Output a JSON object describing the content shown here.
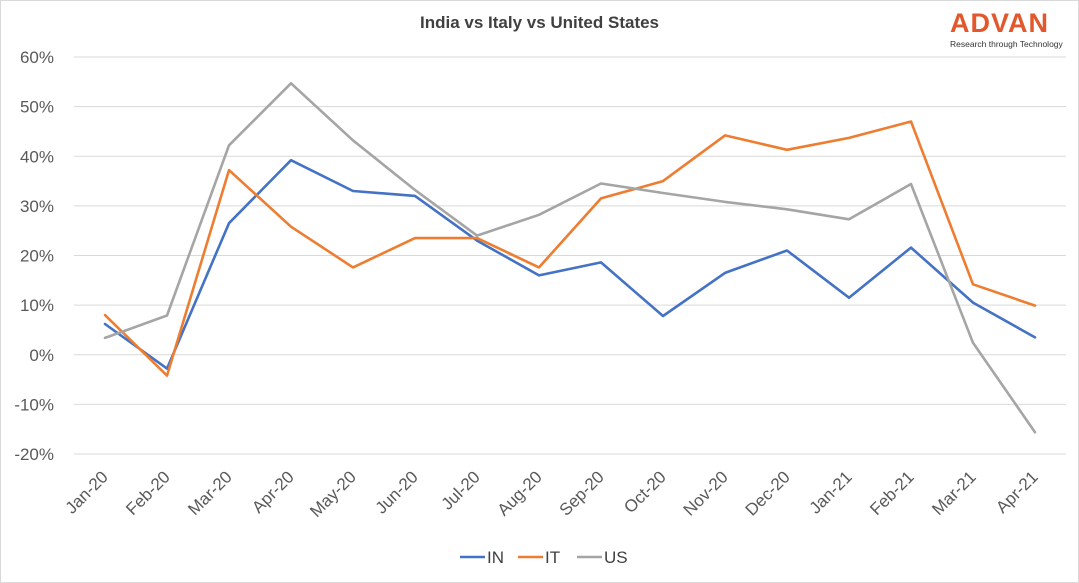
{
  "chart_data": {
    "type": "line",
    "title": "India vs Italy vs United States",
    "categories": [
      "Jan-20",
      "Feb-20",
      "Mar-20",
      "Apr-20",
      "May-20",
      "Jun-20",
      "Jul-20",
      "Aug-20",
      "Sep-20",
      "Oct-20",
      "Nov-20",
      "Dec-20",
      "Jan-21",
      "Feb-21",
      "Mar-21",
      "Apr-21"
    ],
    "series": [
      {
        "name": "IN",
        "color": "#4472c4",
        "values": [
          6.2,
          -2.8,
          26.5,
          39.2,
          33.0,
          32.0,
          23.0,
          16.0,
          18.6,
          7.8,
          16.5,
          21.0,
          11.5,
          21.6,
          10.5,
          3.5
        ]
      },
      {
        "name": "IT",
        "color": "#ed7d31",
        "values": [
          8.0,
          -4.2,
          37.2,
          25.8,
          17.6,
          23.5,
          23.5,
          17.6,
          31.5,
          35.0,
          44.2,
          41.3,
          43.7,
          47.0,
          14.2,
          9.9
        ]
      },
      {
        "name": "US",
        "color": "#a5a5a5",
        "values": [
          3.4,
          7.9,
          42.2,
          54.7,
          43.2,
          33.2,
          24.0,
          28.2,
          34.5,
          32.6,
          30.8,
          29.3,
          27.3,
          34.4,
          2.4,
          -15.6
        ]
      }
    ],
    "ylim": [
      -20,
      60
    ],
    "yticks": [
      -20,
      -10,
      0,
      10,
      20,
      30,
      40,
      50,
      60
    ],
    "ytick_labels": [
      "-20%",
      "-10%",
      "0%",
      "10%",
      "20%",
      "30%",
      "40%",
      "50%",
      "60%"
    ],
    "grid": true,
    "legend_position": "bottom",
    "xlabel": "",
    "ylabel": ""
  },
  "logo": {
    "word": "ADVAN",
    "tagline": "Research through Technology"
  }
}
